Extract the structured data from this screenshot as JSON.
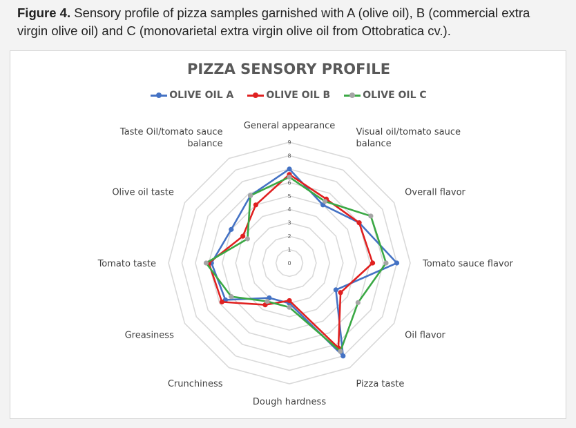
{
  "caption": {
    "label": "Figure 4.",
    "text": " Sensory profile of pizza samples garnished with A (olive oil), B (commercial extra virgin olive oil) and C (monovarietal extra virgin olive oil from Ottobratica cv.)."
  },
  "chart_data": {
    "type": "radar",
    "title": "PIZZA SENSORY PROFILE",
    "categories": [
      "General appearance",
      "Visual oil/tomato sauce balance",
      "Overall flavor",
      "Tomato sauce flavor",
      "Oil flavor",
      "Pizza taste",
      "Dough hardness",
      "Crunchiness",
      "Greasiness",
      "Tomato taste",
      "Olive oil taste",
      "Taste Oil/tomato sauce balance"
    ],
    "category_label_lines": [
      [
        "General appearance"
      ],
      [
        "Visual oil/tomato sauce",
        "balance"
      ],
      [
        "Overall flavor"
      ],
      [
        "Tomato sauce flavor"
      ],
      [
        "Oil flavor"
      ],
      [
        "Pizza taste"
      ],
      [
        "Dough hardness"
      ],
      [
        "Crunchiness"
      ],
      [
        "Greasiness"
      ],
      [
        "Tomato taste"
      ],
      [
        "Olive oil taste"
      ],
      [
        "Taste Oil/tomato sauce",
        "balance"
      ]
    ],
    "scale": {
      "min": 0,
      "max": 9,
      "step": 1
    },
    "tick_labels": [
      "0",
      "1",
      "2",
      "3",
      "4",
      "5",
      "6",
      "7",
      "8",
      "9"
    ],
    "legend_position": "top",
    "series": [
      {
        "name": "OLIVE OIL A",
        "color": "#4472c4",
        "values": [
          7.0,
          5.0,
          6.0,
          8.0,
          4.0,
          8.0,
          3.0,
          3.0,
          5.5,
          5.8,
          5.0,
          5.8
        ]
      },
      {
        "name": "OLIVE OIL B",
        "color": "#e02020",
        "values": [
          6.6,
          5.5,
          6.0,
          6.2,
          4.4,
          7.3,
          2.8,
          3.6,
          5.8,
          6.0,
          4.0,
          5.0
        ]
      },
      {
        "name": "OLIVE OIL C",
        "color": "#3aa844",
        "markerColor": "#a5a5a5",
        "values": [
          6.4,
          5.3,
          7.0,
          7.2,
          5.9,
          7.6,
          3.3,
          3.3,
          5.0,
          6.2,
          3.6,
          5.8
        ]
      }
    ],
    "grid_color": "#d9d9d9"
  }
}
